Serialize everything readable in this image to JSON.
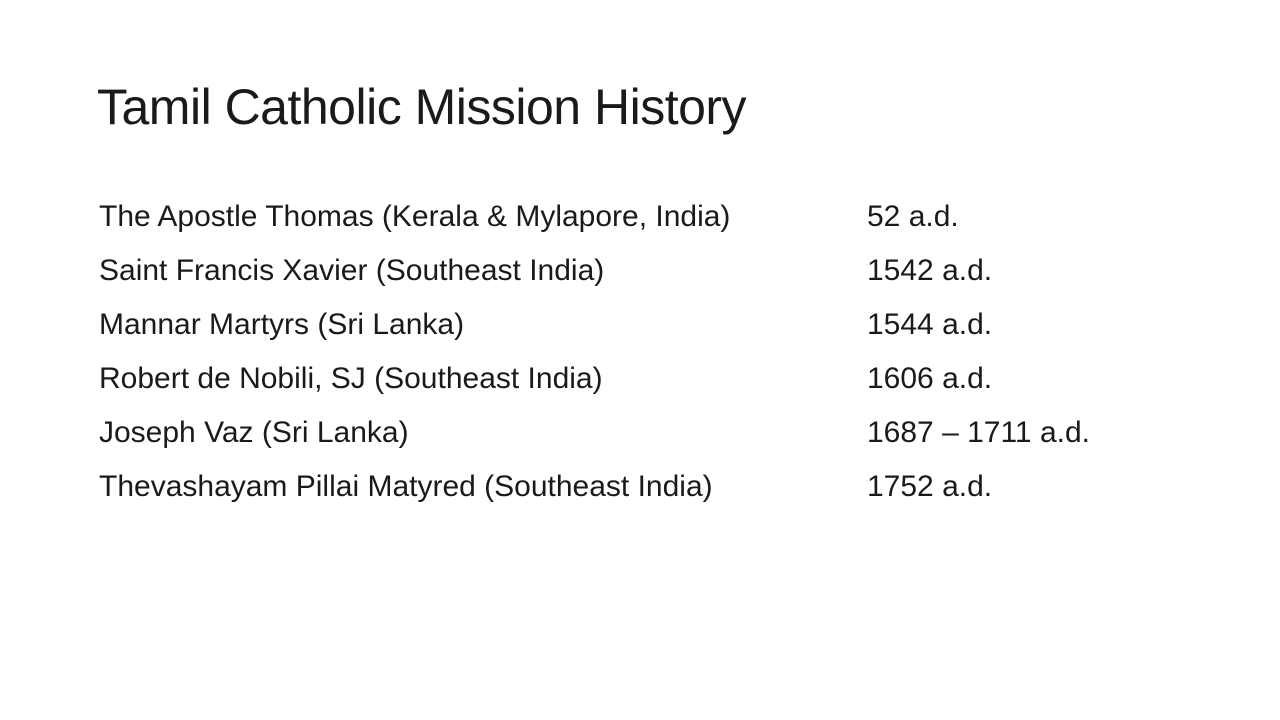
{
  "title": "Tamil Catholic Mission History",
  "rows": [
    [
      "The Apostle Thomas (Kerala & Mylapore, India)",
      "52 a.d."
    ],
    [
      "Saint Francis Xavier (Southeast India)",
      "1542 a.d."
    ],
    [
      "Mannar Martyrs (Sri Lanka)",
      "1544 a.d."
    ],
    [
      "Robert de Nobili, SJ (Southeast India)",
      "1606 a.d."
    ],
    [
      "Joseph Vaz (Sri Lanka)",
      "1687 – 1711 a.d."
    ],
    [
      "Thevashayam Pillai Matyred (Southeast India)",
      "1752 a.d."
    ]
  ]
}
